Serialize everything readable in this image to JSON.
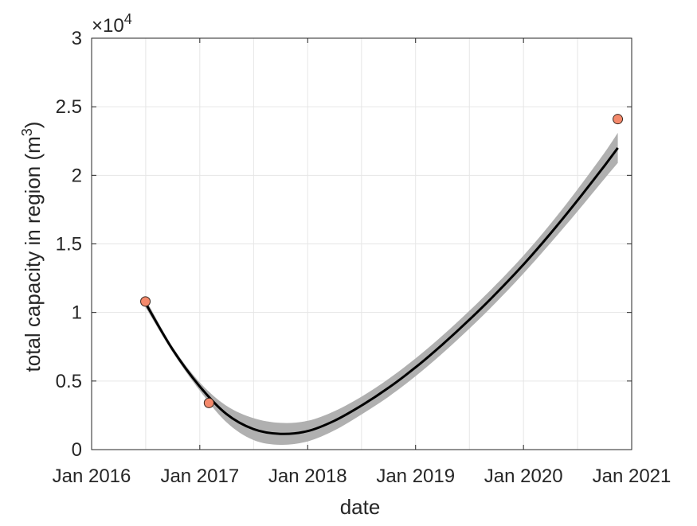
{
  "chart_data": {
    "type": "line",
    "xlabel": "date",
    "ylabel": "total capacity in region (m",
    "ylabel_superscript": "3",
    "ylabel_suffix": ")",
    "y_exponent_label": "×10",
    "y_exponent_power": "4",
    "x_ticks": [
      "Jan 2016",
      "Jan 2017",
      "Jan 2018",
      "Jan 2019",
      "Jan 2020",
      "Jan 2021"
    ],
    "y_ticks": [
      "0",
      "0.5",
      "1",
      "1.5",
      "2",
      "2.5",
      "3"
    ],
    "ylim": [
      0,
      30000
    ],
    "xlim": [
      "2016-01-01",
      "2021-01-01"
    ],
    "grid": true,
    "colors": {
      "fit_line": "#000000",
      "confidence_band": "#b0b0b0",
      "points": "#f4896b",
      "grid": "#e6e6e6",
      "axis": "#262626"
    },
    "series": [
      {
        "type": "line",
        "x": [
          "2016-07-01",
          "2016-10-01",
          "2017-01-01",
          "2017-04-01",
          "2017-07-01",
          "2017-10-01",
          "2018-01-01",
          "2018-04-01",
          "2018-07-01",
          "2018-10-01",
          "2019-01-01",
          "2019-04-01",
          "2019-07-01",
          "2019-10-01",
          "2020-01-01",
          "2020-04-01",
          "2020-07-01",
          "2020-10-01",
          "2020-11-15"
        ],
        "y": [
          10700,
          7300,
          4600,
          2600,
          1500,
          1150,
          1350,
          2100,
          3200,
          4500,
          6000,
          7650,
          9450,
          11400,
          13500,
          15750,
          18150,
          20700,
          22000
        ],
        "band_upper": [
          11000,
          7500,
          4900,
          3200,
          2300,
          1950,
          2100,
          2800,
          3850,
          5150,
          6650,
          8300,
          10100,
          12050,
          14150,
          16450,
          18950,
          21650,
          23100
        ],
        "band_lower": [
          10400,
          7100,
          4300,
          2000,
          700,
          350,
          600,
          1400,
          2550,
          3850,
          5350,
          7000,
          8800,
          10750,
          12850,
          15050,
          17350,
          19750,
          20900
        ]
      },
      {
        "type": "scatter",
        "x": [
          "2016-07-01",
          "2017-02-01",
          "2020-11-15"
        ],
        "y": [
          10800,
          3400,
          24100
        ]
      }
    ]
  }
}
